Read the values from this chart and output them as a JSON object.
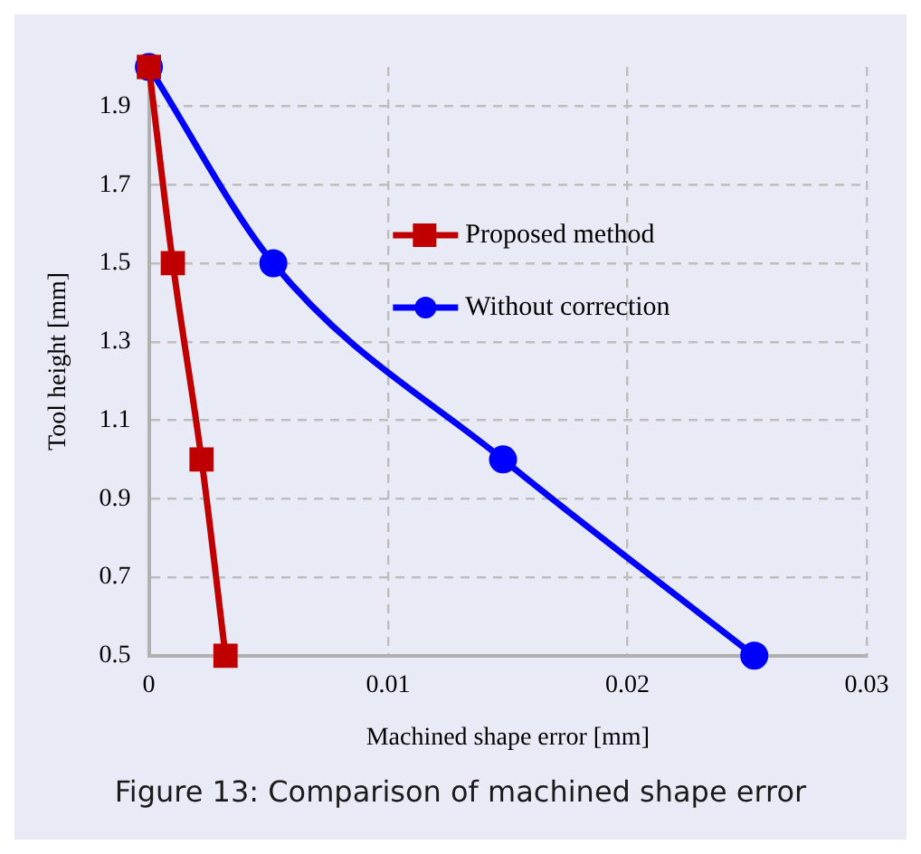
{
  "chart_data": {
    "type": "line",
    "title": "Figure 13: Comparison of machined shape error",
    "xlabel": "Machined shape error [mm]",
    "ylabel": "Tool height [mm]",
    "xlim": [
      0,
      0.03
    ],
    "xticks": [
      0,
      0.01,
      0.02,
      0.03
    ],
    "ylim": [
      0.5,
      2.0
    ],
    "yticks": [
      0.5,
      0.7,
      0.9,
      1.1,
      1.3,
      1.5,
      1.7,
      1.9
    ],
    "grid": true,
    "legend": "top right",
    "line_style": "solid",
    "series": [
      {
        "name": "Proposed method",
        "color": "#c00000",
        "marker": "square",
        "x": [
          0,
          0.001,
          0.0022,
          0.0032
        ],
        "values": [
          2.0,
          1.5,
          1.0,
          0.5
        ]
      },
      {
        "name": "Without correction",
        "color": "#0000ff",
        "marker": "circle",
        "x": [
          0,
          0.0052,
          0.0148,
          0.0253
        ],
        "values": [
          2.0,
          1.5,
          1.0,
          0.5
        ]
      }
    ]
  }
}
